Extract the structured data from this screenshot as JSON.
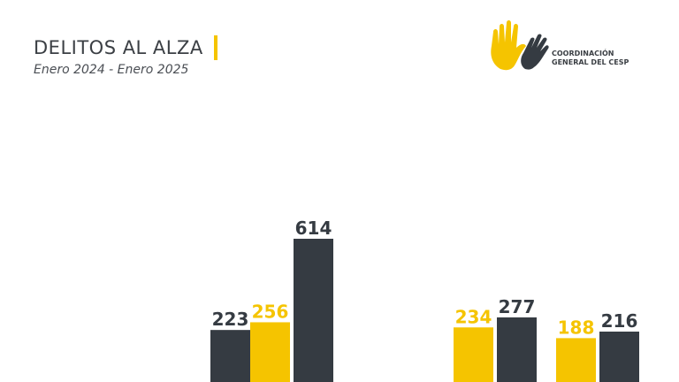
{
  "header": {
    "title": "DELITOS AL ALZA",
    "subtitle": "Enero 2024 - Enero 2025"
  },
  "logo": {
    "line1": "COORDINACIÓN",
    "line2": "GENERAL DEL CESP"
  },
  "colors": {
    "yellow": "#f5c400",
    "dark": "#353b42",
    "text": "#3b3f44"
  },
  "chart_data": {
    "type": "bar",
    "title": "",
    "xlabel": "",
    "ylabel": "",
    "ylim": [
      0,
      614
    ],
    "groups": [
      {
        "values": [
          null,
          223
        ]
      },
      {
        "values": [
          256,
          614
        ]
      },
      {
        "values": [
          null,
          null
        ]
      },
      {
        "values": [
          234,
          277
        ]
      },
      {
        "values": [
          188,
          216
        ]
      }
    ],
    "series": [
      {
        "color": "#f5c400"
      },
      {
        "color": "#353b42"
      }
    ]
  }
}
